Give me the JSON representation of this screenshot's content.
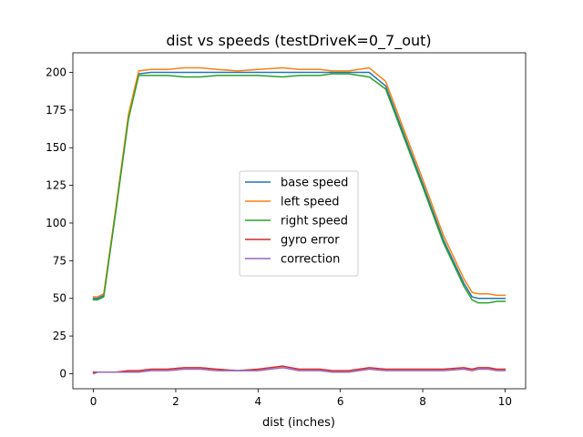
{
  "chart_data": {
    "type": "line",
    "title": "dist vs speeds (testDriveK=0_7_out)",
    "xlabel": "dist (inches)",
    "ylabel": "",
    "xlim": [
      -0.5,
      10.5
    ],
    "ylim": [
      -10,
      213
    ],
    "xticks": [
      0,
      2,
      4,
      6,
      8,
      10
    ],
    "yticks": [
      0,
      25,
      50,
      75,
      100,
      125,
      150,
      175,
      200
    ],
    "grid": false,
    "legend_position": "center",
    "x": [
      0,
      0.1,
      0.25,
      0.55,
      0.85,
      1.1,
      1.4,
      1.8,
      2.2,
      2.6,
      3.0,
      3.5,
      4.0,
      4.6,
      5.0,
      5.5,
      5.8,
      6.2,
      6.7,
      7.1,
      7.5,
      8.0,
      8.5,
      9.0,
      9.2,
      9.35,
      9.6,
      9.8,
      10.0
    ],
    "series": [
      {
        "name": "base speed",
        "color": "#1f77b4",
        "values": [
          50,
          50,
          52,
          110,
          170,
          199,
          200,
          200,
          200,
          200,
          200,
          200,
          200,
          200,
          200,
          200,
          200,
          200,
          200,
          191,
          162,
          126,
          89,
          60,
          51,
          50,
          50,
          50,
          50
        ]
      },
      {
        "name": "left speed",
        "color": "#ff7f0e",
        "values": [
          51,
          51,
          53,
          111,
          172,
          201,
          202,
          202,
          203,
          203,
          202,
          201,
          202,
          203,
          202,
          202,
          201,
          201,
          203,
          194,
          165,
          129,
          92,
          63,
          54,
          53,
          53,
          52,
          52
        ]
      },
      {
        "name": "right speed",
        "color": "#2ca02c",
        "values": [
          49,
          49,
          51,
          109,
          169,
          198,
          198,
          198,
          197,
          197,
          198,
          198,
          198,
          197,
          198,
          198,
          199,
          199,
          197,
          189,
          160,
          124,
          87,
          58,
          49,
          47,
          47,
          48,
          48
        ]
      },
      {
        "name": "gyro error",
        "color": "#d62728",
        "values": [
          1,
          1,
          1,
          1,
          2,
          2,
          3,
          3,
          4,
          4,
          3,
          2,
          3,
          5,
          3,
          3,
          2,
          2,
          4,
          3,
          3,
          3,
          3,
          4,
          3,
          4,
          4,
          3,
          3
        ]
      },
      {
        "name": "correction",
        "color": "#9467bd",
        "values": [
          0,
          1,
          1,
          1,
          1,
          1,
          2,
          2,
          3,
          3,
          2,
          2,
          2,
          4,
          2,
          2,
          1,
          1,
          3,
          2,
          2,
          2,
          2,
          3,
          2,
          3,
          3,
          2,
          2
        ]
      }
    ]
  }
}
